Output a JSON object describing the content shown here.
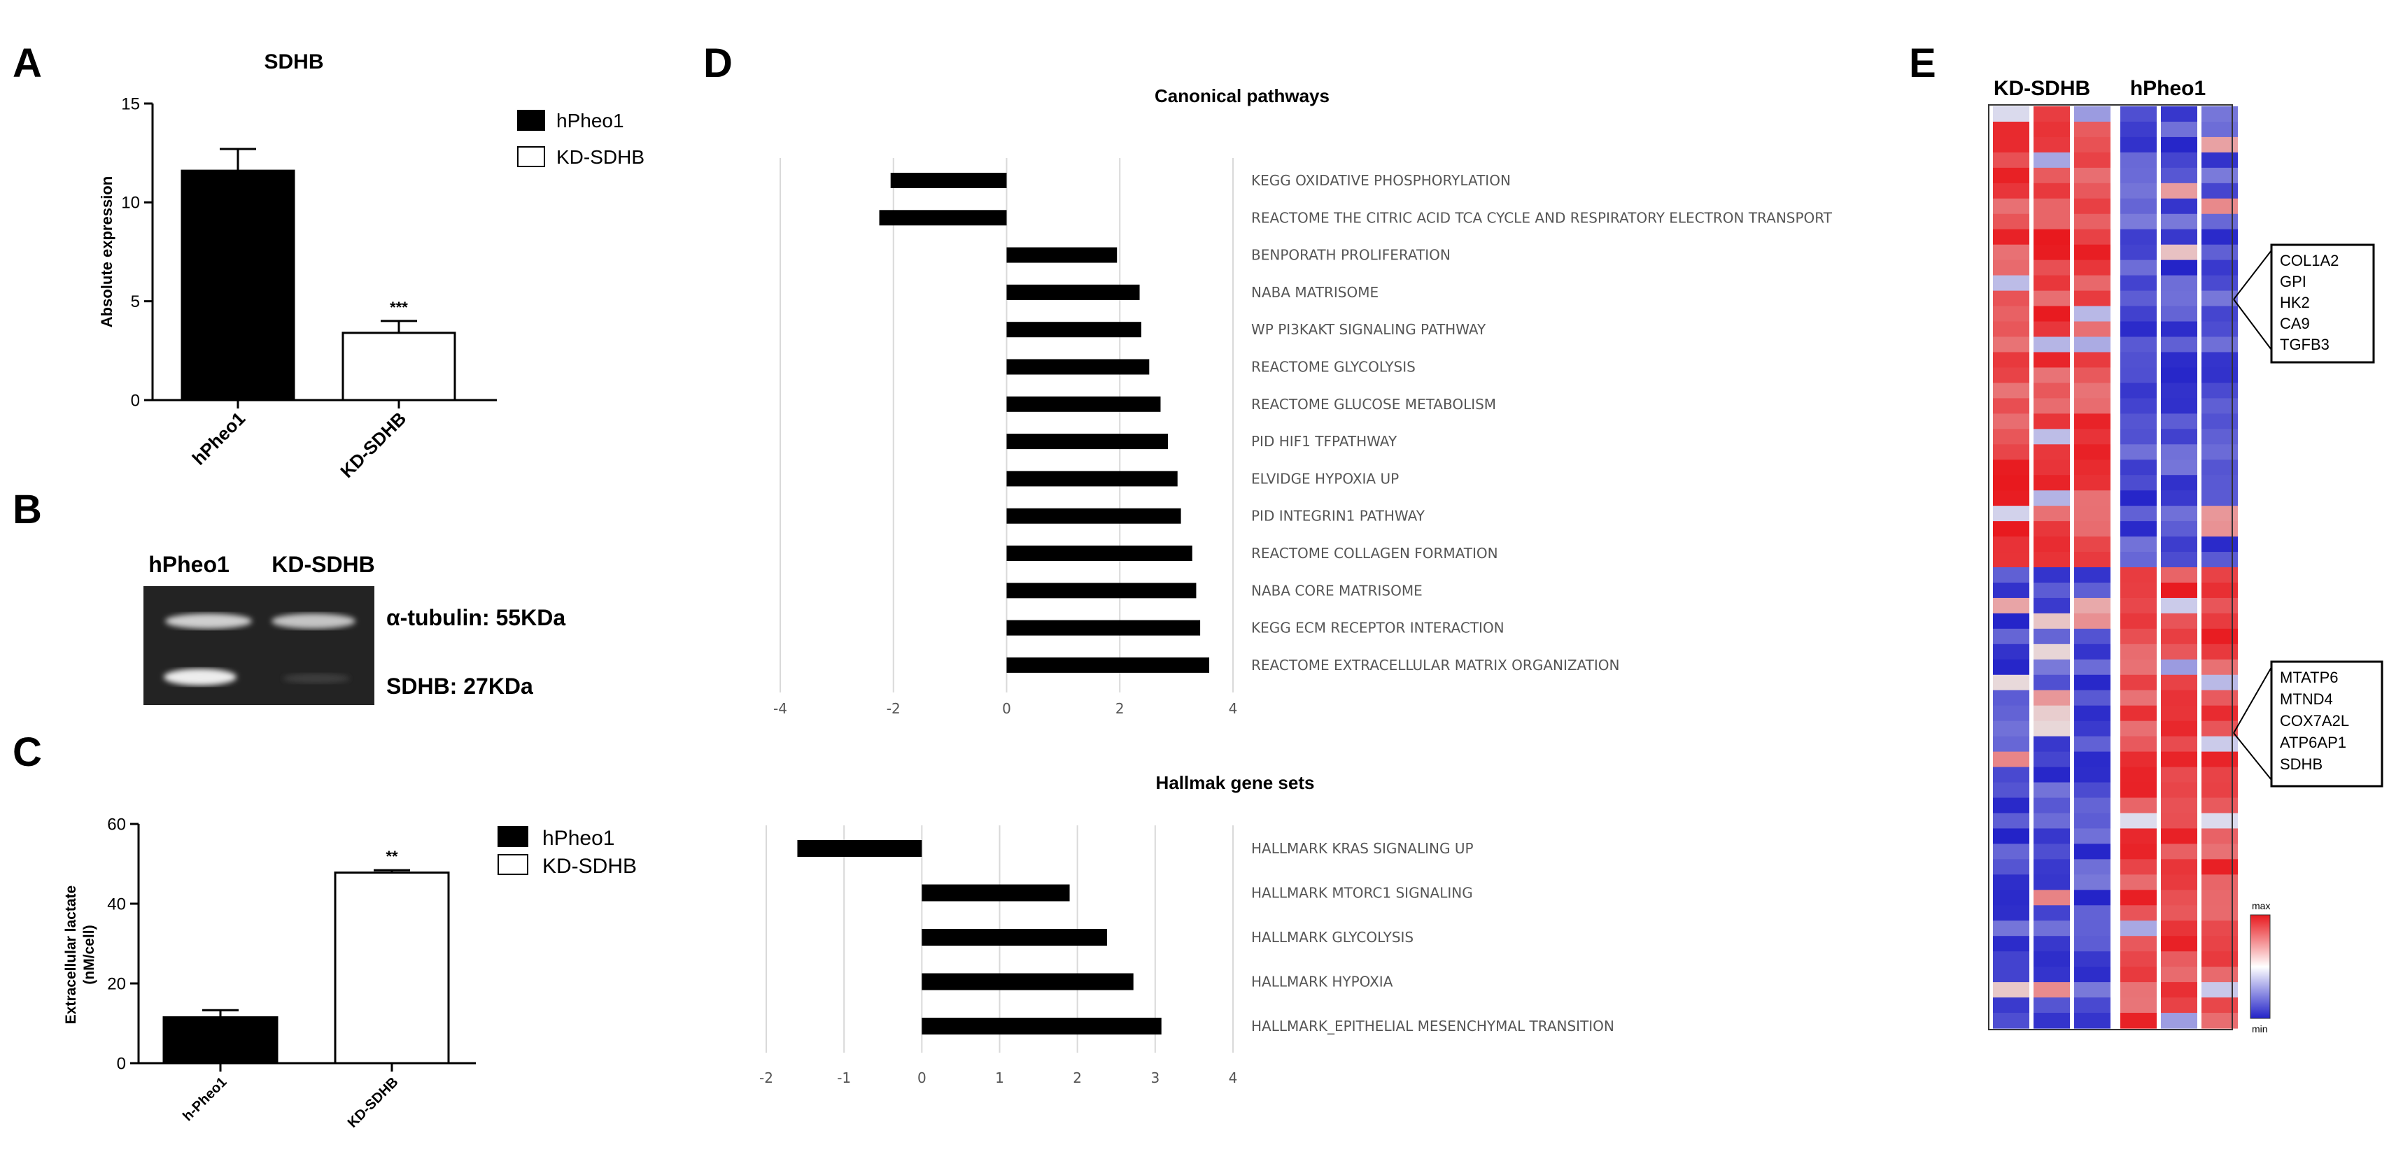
{
  "panel_letters": {
    "a": "A",
    "b": "B",
    "c": "C",
    "d": "D",
    "e": "E"
  },
  "colors": {
    "black": "#000000",
    "white": "#ffffff",
    "grid": "#d9d9d9",
    "heat_max": "#e8191e",
    "heat_mid": "#ffffff",
    "heat_min": "#2222c8"
  },
  "chart_data": [
    {
      "id": "A",
      "type": "bar",
      "title": "SDHB",
      "ylabel": "Absolute expression",
      "categories": [
        "hPheo1",
        "KD-SDHB"
      ],
      "series": [
        {
          "values": [
            11.6,
            3.4
          ],
          "errors": [
            1.1,
            0.6
          ]
        }
      ],
      "ylim": [
        0,
        15
      ],
      "yticks": [
        "0",
        "5",
        "10",
        "15"
      ],
      "legend": [
        "hPheo1",
        "KD-SDHB"
      ],
      "bar_fill": [
        "#000000",
        "#ffffff"
      ],
      "significance": [
        {
          "category": "KD-SDHB",
          "label": "***"
        }
      ]
    },
    {
      "id": "C",
      "type": "bar",
      "ylabel": "Extracellular lactate (nM/cell)",
      "ylabel_lines": [
        "Extracellular lactate",
        "(nM/cell)"
      ],
      "categories": [
        "h-Pheo1",
        "KD-SDHB"
      ],
      "series": [
        {
          "values": [
            11.5,
            47.8
          ],
          "errors": [
            1.8,
            0.6
          ]
        }
      ],
      "ylim": [
        0,
        60
      ],
      "yticks": [
        "0",
        "20",
        "40",
        "60"
      ],
      "legend": [
        "hPheo1",
        "KD-SDHB"
      ],
      "bar_fill": [
        "#000000",
        "#ffffff"
      ],
      "significance": [
        {
          "category": "KD-SDHB",
          "label": "**"
        }
      ]
    },
    {
      "id": "D1",
      "type": "bar",
      "orientation": "horizontal",
      "title": "Canonical pathways",
      "categories": [
        "KEGG OXIDATIVE PHOSPHORYLATION",
        "REACTOME THE CITRIC ACID TCA CYCLE AND RESPIRATORY ELECTRON TRANSPORT",
        "BENPORATH PROLIFERATION",
        "NABA MATRISOME",
        "WP PI3KAKT SIGNALING PATHWAY",
        "REACTOME GLYCOLYSIS",
        "REACTOME GLUCOSE METABOLISM",
        "PID HIF1 TFPATHWAY",
        "ELVIDGE HYPOXIA UP",
        "PID INTEGRIN1 PATHWAY",
        "REACTOME COLLAGEN FORMATION",
        "NABA CORE MATRISOME",
        "KEGG ECM RECEPTOR INTERACTION",
        "REACTOME EXTRACELLULAR MATRIX ORGANIZATION"
      ],
      "values": [
        -2.05,
        -2.25,
        1.95,
        2.35,
        2.38,
        2.52,
        2.72,
        2.85,
        3.02,
        3.08,
        3.28,
        3.35,
        3.42,
        3.58
      ],
      "xlim": [
        -4,
        4
      ],
      "xticks": [
        "-4",
        "-2",
        "0",
        "2",
        "4"
      ]
    },
    {
      "id": "D2",
      "type": "bar",
      "orientation": "horizontal",
      "title": "Hallmak gene sets",
      "categories": [
        "HALLMARK KRAS SIGNALING UP",
        "HALLMARK MTORC1 SIGNALING",
        "HALLMARK GLYCOLYSIS",
        "HALLMARK HYPOXIA",
        "HALLMARK_EPITHELIAL MESENCHYMAL TRANSITION"
      ],
      "values": [
        -1.6,
        1.9,
        2.38,
        2.72,
        3.08
      ],
      "xlim": [
        -2,
        4
      ],
      "xticks": [
        "-2",
        "-1",
        "0",
        "1",
        "2",
        "3",
        "4"
      ]
    },
    {
      "id": "E",
      "type": "heatmap",
      "column_groups": [
        "KD-SDHB",
        "hPheo1"
      ],
      "columns_per_group": 3,
      "rows": 60,
      "colorbar_labels": [
        "max",
        "min"
      ],
      "gene_box_upper": [
        "COL1A2",
        "GPI",
        "HK2",
        "CA9",
        "TGFB3"
      ],
      "gene_box_lower": [
        "MTATP6",
        "MTND4",
        "COX7A2L",
        "ATP6AP1",
        "SDHB"
      ]
    }
  ],
  "panel_b": {
    "lane_labels": [
      "hPheo1",
      "KD-SDHB"
    ],
    "band_labels": [
      "α-tubulin: 55KDa",
      "SDHB: 27KDa"
    ]
  }
}
